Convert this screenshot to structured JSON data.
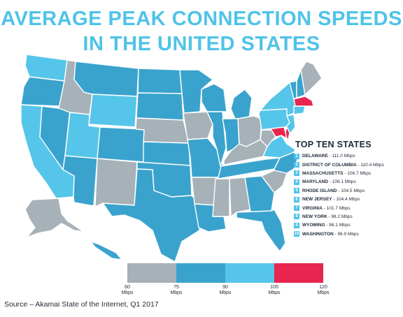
{
  "title": {
    "line1": "AVERAGE PEAK CONNECTION SPEEDS",
    "line2": "IN THE UNITED STATES"
  },
  "colors": {
    "tier_60_75": "#a6b1b8",
    "tier_75_90": "#3aa3cd",
    "tier_90_105": "#56c5ea",
    "tier_105_120": "#e8254f",
    "title": "#4fc3e8",
    "border": "#ffffff"
  },
  "top_ten": {
    "title": "TOP TEN STATES",
    "items": [
      {
        "rank": "1",
        "state": "DELAWARE",
        "speed": "111.0 Mbps"
      },
      {
        "rank": "2",
        "state": "DISTRICT OF COLUMBIA",
        "speed": "110.4 Mbps"
      },
      {
        "rank": "3",
        "state": "MASSACHUSETTS",
        "speed": "106.7 Mbps"
      },
      {
        "rank": "4",
        "state": "MARYLAND",
        "speed": "106.1 Mbps"
      },
      {
        "rank": "5",
        "state": "RHODE ISLAND",
        "speed": "104.5 Mbps"
      },
      {
        "rank": "6",
        "state": "NEW JERSEY",
        "speed": "104.4 Mbps"
      },
      {
        "rank": "7",
        "state": "VIRGINIA",
        "speed": "101.7 Mbps"
      },
      {
        "rank": "8",
        "state": "NEW YORK",
        "speed": "98.2 Mbps"
      },
      {
        "rank": "9",
        "state": "WYOMING",
        "speed": "98.1 Mbps"
      },
      {
        "rank": "10",
        "state": "WASHINGTON",
        "speed": "96.9 Mbps"
      }
    ]
  },
  "legend": {
    "ticks": [
      {
        "value": "60",
        "unit": "Mbps"
      },
      {
        "value": "75",
        "unit": "Mbps"
      },
      {
        "value": "90",
        "unit": "Mbps"
      },
      {
        "value": "105",
        "unit": "Mbps"
      },
      {
        "value": "120",
        "unit": "Mbps"
      }
    ]
  },
  "states": [
    {
      "name": "washington",
      "tier": "tier_90_105"
    },
    {
      "name": "oregon",
      "tier": "tier_75_90"
    },
    {
      "name": "california",
      "tier": "tier_90_105"
    },
    {
      "name": "nevada",
      "tier": "tier_75_90"
    },
    {
      "name": "idaho",
      "tier": "tier_60_75"
    },
    {
      "name": "montana",
      "tier": "tier_75_90"
    },
    {
      "name": "wyoming",
      "tier": "tier_90_105"
    },
    {
      "name": "utah",
      "tier": "tier_90_105"
    },
    {
      "name": "arizona",
      "tier": "tier_75_90"
    },
    {
      "name": "colorado",
      "tier": "tier_75_90"
    },
    {
      "name": "new-mexico",
      "tier": "tier_60_75"
    },
    {
      "name": "north-dakota",
      "tier": "tier_75_90"
    },
    {
      "name": "south-dakota",
      "tier": "tier_75_90"
    },
    {
      "name": "nebraska",
      "tier": "tier_60_75"
    },
    {
      "name": "kansas",
      "tier": "tier_75_90"
    },
    {
      "name": "oklahoma",
      "tier": "tier_75_90"
    },
    {
      "name": "texas",
      "tier": "tier_75_90"
    },
    {
      "name": "minnesota",
      "tier": "tier_75_90"
    },
    {
      "name": "iowa",
      "tier": "tier_60_75"
    },
    {
      "name": "missouri",
      "tier": "tier_75_90"
    },
    {
      "name": "arkansas",
      "tier": "tier_60_75"
    },
    {
      "name": "louisiana",
      "tier": "tier_75_90"
    },
    {
      "name": "wisconsin",
      "tier": "tier_75_90"
    },
    {
      "name": "illinois",
      "tier": "tier_75_90"
    },
    {
      "name": "michigan",
      "tier": "tier_75_90"
    },
    {
      "name": "indiana",
      "tier": "tier_75_90"
    },
    {
      "name": "ohio",
      "tier": "tier_60_75"
    },
    {
      "name": "kentucky",
      "tier": "tier_60_75"
    },
    {
      "name": "tennessee",
      "tier": "tier_75_90"
    },
    {
      "name": "mississippi",
      "tier": "tier_60_75"
    },
    {
      "name": "alabama",
      "tier": "tier_60_75"
    },
    {
      "name": "georgia",
      "tier": "tier_75_90"
    },
    {
      "name": "florida",
      "tier": "tier_75_90"
    },
    {
      "name": "south-carolina",
      "tier": "tier_60_75"
    },
    {
      "name": "north-carolina",
      "tier": "tier_75_90"
    },
    {
      "name": "virginia",
      "tier": "tier_90_105"
    },
    {
      "name": "west-virginia",
      "tier": "tier_60_75"
    },
    {
      "name": "pennsylvania",
      "tier": "tier_90_105"
    },
    {
      "name": "new-york",
      "tier": "tier_90_105"
    },
    {
      "name": "vermont",
      "tier": "tier_75_90"
    },
    {
      "name": "new-hampshire",
      "tier": "tier_75_90"
    },
    {
      "name": "maine",
      "tier": "tier_60_75"
    },
    {
      "name": "massachusetts",
      "tier": "tier_105_120"
    },
    {
      "name": "connecticut",
      "tier": "tier_90_105"
    },
    {
      "name": "new-jersey",
      "tier": "tier_90_105"
    },
    {
      "name": "delaware",
      "tier": "tier_105_120"
    },
    {
      "name": "maryland",
      "tier": "tier_105_120"
    },
    {
      "name": "alaska",
      "tier": "tier_60_75"
    },
    {
      "name": "hawaii",
      "tier": "tier_75_90"
    }
  ],
  "source": "Source – Akamai State of the Internet, Q1 2017"
}
